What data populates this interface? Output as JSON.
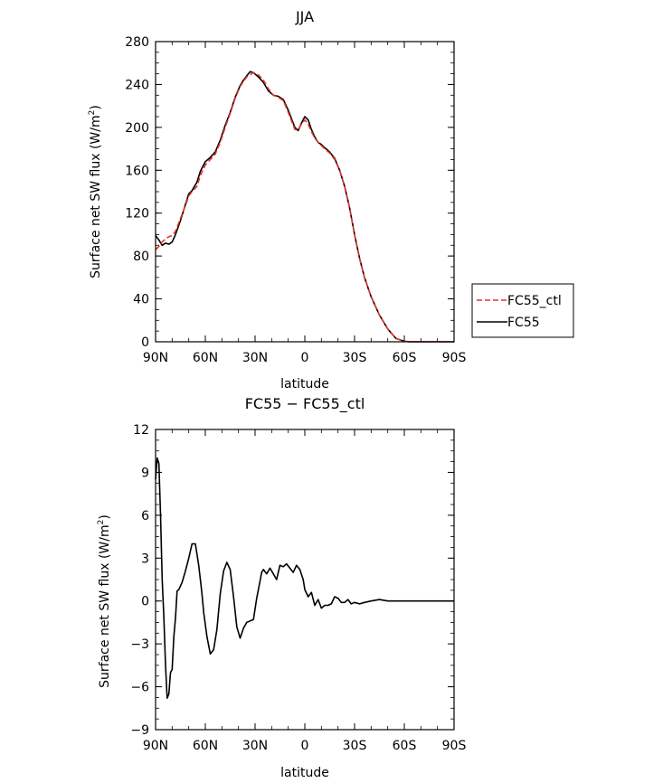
{
  "chart_data": [
    {
      "type": "line",
      "title": "JJA",
      "xlabel": "latitude",
      "ylabel": "Surface net SW flux (W/m",
      "ylabel_sup": "2",
      "ylabel_end": ")",
      "xlim": [
        90,
        -90
      ],
      "ylim": [
        0,
        280
      ],
      "yticks": [
        0,
        40,
        80,
        120,
        160,
        200,
        240,
        280
      ],
      "ytick_labels": [
        "0",
        "40",
        "80",
        "120",
        "160",
        "200",
        "240",
        "280"
      ],
      "xticks": [
        90,
        60,
        30,
        0,
        -30,
        -60,
        -90
      ],
      "xtick_labels": [
        "90N",
        "60N",
        "30N",
        "0",
        "30S",
        "60S",
        "90S"
      ],
      "legend_position": "right",
      "series": [
        {
          "name": "FC55_ctl",
          "color": "#e8322c",
          "dash": "dashed",
          "x": [
            90,
            88,
            86,
            84,
            82,
            80,
            78,
            75,
            72,
            70,
            68,
            65,
            63,
            60,
            57,
            54,
            51,
            48,
            45,
            42,
            39,
            37,
            35,
            33,
            31,
            28,
            25,
            22,
            19,
            16,
            13,
            10,
            8,
            6,
            4,
            2,
            0,
            -2,
            -4,
            -6,
            -8,
            -10,
            -12,
            -15,
            -18,
            -21,
            -24,
            -27,
            -30,
            -33,
            -36,
            -40,
            -45,
            -50,
            -55,
            -60,
            -63,
            -66,
            -70,
            -75,
            -80,
            -85,
            -90
          ],
          "y": [
            86,
            89,
            93,
            96,
            98,
            99,
            103,
            115,
            127,
            136,
            140,
            145,
            155,
            165,
            170,
            175,
            186,
            200,
            213,
            227,
            238,
            243,
            247,
            249,
            251,
            249,
            244,
            236,
            230,
            228,
            225,
            214,
            206,
            198,
            198,
            203,
            207,
            203,
            196,
            190,
            186,
            183,
            180,
            176,
            170,
            160,
            145,
            125,
            100,
            78,
            60,
            42,
            25,
            12,
            3,
            0.5,
            0,
            0,
            0,
            0,
            0,
            0,
            0
          ]
        },
        {
          "name": "FC55",
          "color": "#000000",
          "dash": "solid",
          "x": [
            90,
            88,
            86,
            84,
            82,
            80,
            78,
            75,
            72,
            70,
            68,
            65,
            63,
            60,
            57,
            54,
            51,
            48,
            45,
            42,
            39,
            37,
            35,
            33,
            31,
            28,
            25,
            22,
            19,
            16,
            13,
            10,
            8,
            6,
            4,
            2,
            0,
            -2,
            -4,
            -6,
            -8,
            -10,
            -12,
            -15,
            -18,
            -21,
            -24,
            -27,
            -30,
            -33,
            -36,
            -40,
            -45,
            -50,
            -55,
            -60,
            -63,
            -66,
            -70,
            -75,
            -80,
            -85,
            -90
          ],
          "y": [
            99,
            95,
            90,
            92,
            91,
            93,
            100,
            113,
            128,
            138,
            141,
            149,
            159,
            168,
            172,
            177,
            188,
            202,
            214,
            228,
            239,
            244,
            248,
            252,
            251,
            247,
            242,
            234,
            230,
            229,
            226,
            216,
            208,
            200,
            197,
            204,
            210,
            207,
            198,
            191,
            186,
            184,
            181,
            177,
            171,
            160,
            145,
            125,
            100,
            78,
            60,
            42,
            25,
            12,
            3,
            0.5,
            0,
            0,
            0,
            0,
            0,
            0,
            0
          ]
        }
      ]
    },
    {
      "type": "line",
      "title": "FC55 − FC55_ctl",
      "xlabel": "latitude",
      "ylabel": "Surface net SW flux (W/m",
      "ylabel_sup": "2",
      "ylabel_end": ")",
      "xlim": [
        90,
        -90
      ],
      "ylim": [
        -9,
        12
      ],
      "yticks": [
        -9,
        -6,
        -3,
        0,
        3,
        6,
        9,
        12
      ],
      "ytick_labels": [
        "−9",
        "−6",
        "−3",
        "0",
        "3",
        "6",
        "9",
        "12"
      ],
      "xticks": [
        90,
        60,
        30,
        0,
        -30,
        -60,
        -90
      ],
      "xtick_labels": [
        "90N",
        "60N",
        "30N",
        "0",
        "30S",
        "60S",
        "90S"
      ],
      "series": [
        {
          "name": "",
          "color": "#000000",
          "dash": "solid",
          "x": [
            90,
            89,
            88,
            87,
            86,
            85,
            84,
            83,
            82,
            81,
            80,
            79,
            78,
            77,
            76,
            74,
            72,
            70,
            68,
            66,
            64,
            62,
            61,
            59,
            57,
            55,
            53,
            51,
            49,
            47,
            45,
            43,
            41,
            39,
            37,
            35,
            33,
            31,
            29,
            27,
            26,
            25,
            23,
            21,
            19,
            17,
            15,
            13,
            11,
            9,
            7,
            5,
            3,
            1,
            0,
            -2,
            -4,
            -6,
            -8,
            -10,
            -12,
            -14,
            -16,
            -18,
            -20,
            -22,
            -24,
            -26,
            -28,
            -30,
            -33,
            -36,
            -40,
            -45,
            -50,
            -55,
            -60,
            -65,
            -70,
            -75,
            -80,
            -85,
            -90
          ],
          "y": [
            8.5,
            10,
            9.6,
            6,
            1.5,
            -1.2,
            -4.5,
            -6.8,
            -6.5,
            -5,
            -4.8,
            -2.5,
            -1.2,
            0.7,
            0.8,
            1.3,
            2.1,
            3,
            4,
            4,
            2.5,
            0.5,
            -0.8,
            -2.5,
            -3.7,
            -3.4,
            -2,
            0.5,
            2.1,
            2.7,
            2.2,
            0.3,
            -1.8,
            -2.6,
            -1.9,
            -1.5,
            -1.4,
            -1.3,
            0.2,
            1.4,
            2,
            2.2,
            1.9,
            2.3,
            1.9,
            1.5,
            2.5,
            2.4,
            2.6,
            2.3,
            2,
            2.5,
            2.2,
            1.5,
            0.8,
            0.3,
            0.6,
            -0.3,
            0.1,
            -0.5,
            -0.3,
            -0.3,
            -0.2,
            0.3,
            0.2,
            -0.1,
            -0.1,
            0.1,
            -0.2,
            -0.1,
            -0.2,
            -0.1,
            0,
            0.1,
            0,
            0,
            0,
            0,
            0,
            0,
            0,
            0,
            0
          ]
        }
      ]
    }
  ]
}
